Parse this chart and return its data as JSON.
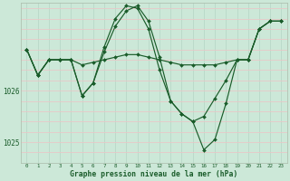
{
  "background_color": "#cce8d8",
  "plot_bg_color": "#cce8d8",
  "grid_color_v": "#b8d8c8",
  "grid_color_h": "#e8c8c8",
  "line_color": "#1a5c2a",
  "marker_color": "#1a5c2a",
  "xlabel": "Graphe pression niveau de la mer (hPa)",
  "yticks": [
    1025,
    1026
  ],
  "ylim": [
    1024.6,
    1027.7
  ],
  "xlim": [
    -0.5,
    23.5
  ],
  "xticks": [
    0,
    1,
    2,
    3,
    4,
    5,
    6,
    7,
    8,
    9,
    10,
    11,
    12,
    13,
    14,
    15,
    16,
    17,
    18,
    19,
    20,
    21,
    22,
    23
  ],
  "series": [
    [
      1026.8,
      1026.3,
      1026.6,
      1026.6,
      1026.6,
      1026.5,
      1026.55,
      1026.6,
      1026.65,
      1026.7,
      1026.7,
      1026.65,
      1026.6,
      1026.55,
      1026.5,
      1026.5,
      1026.5,
      1026.5,
      1026.55,
      1026.6,
      1026.6,
      1027.2,
      1027.35,
      1027.35
    ],
    [
      1026.8,
      1026.3,
      1026.6,
      1026.6,
      1026.6,
      1025.9,
      1026.15,
      1026.75,
      1027.25,
      1027.55,
      1027.65,
      1027.35,
      1026.65,
      1025.8,
      1025.55,
      1025.4,
      1025.5,
      1025.85,
      1026.2,
      1026.6,
      1026.6,
      1027.2,
      1027.35,
      1027.35
    ],
    [
      1026.8,
      1026.3,
      1026.6,
      1026.6,
      1026.6,
      1025.9,
      1026.15,
      1026.85,
      1027.4,
      1027.65,
      1027.6,
      1027.2,
      1026.4,
      1025.8,
      1025.55,
      1025.4,
      1024.85,
      1025.05,
      1025.75,
      1026.6,
      1026.6,
      1027.2,
      1027.35,
      1027.35
    ]
  ]
}
